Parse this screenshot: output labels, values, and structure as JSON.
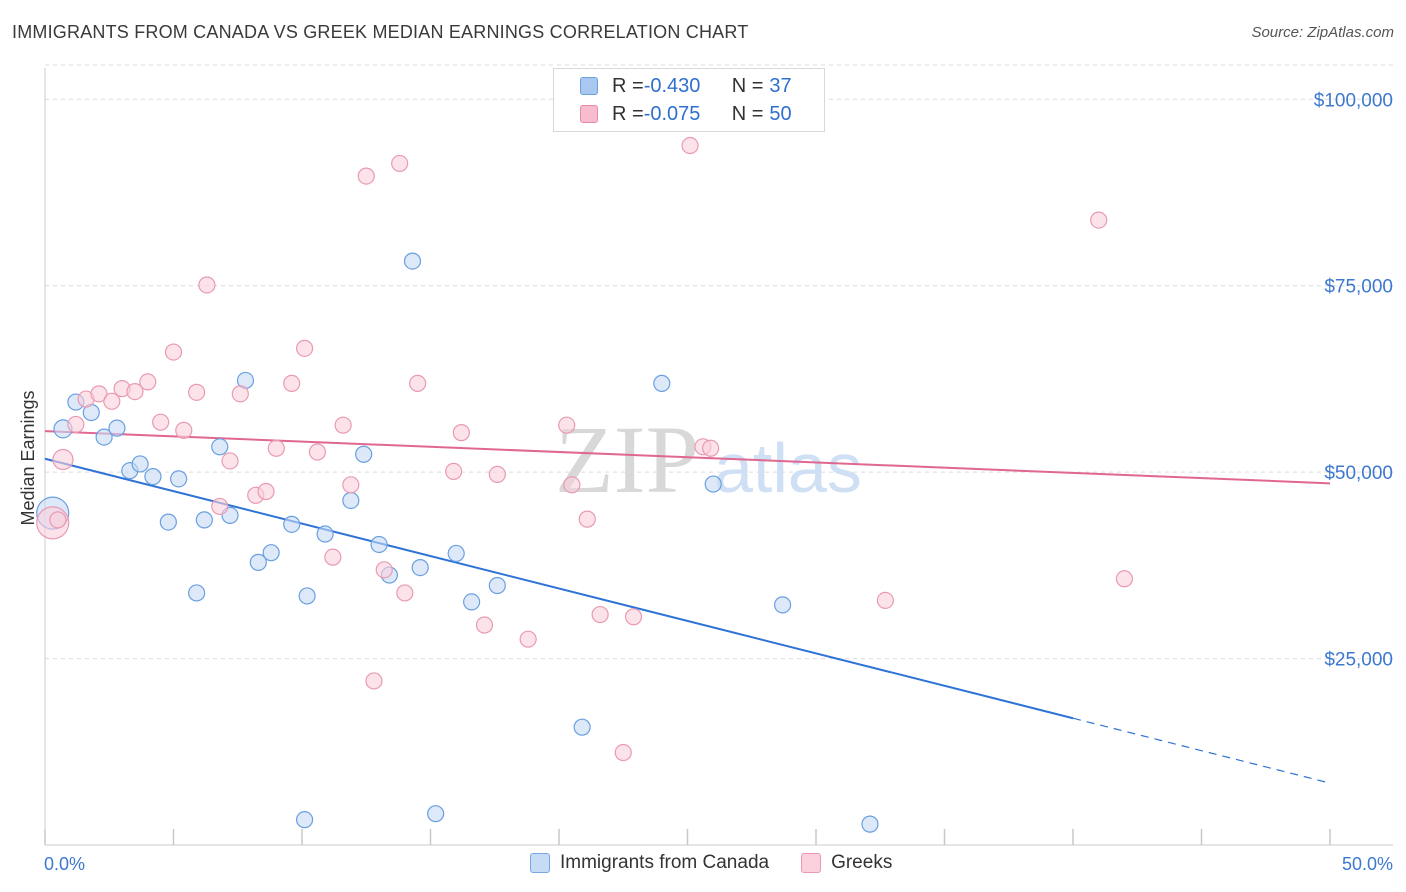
{
  "title": "IMMIGRANTS FROM CANADA VS GREEK MEDIAN EARNINGS CORRELATION CHART",
  "source": "Source: ZipAtlas.com",
  "watermark": {
    "zip": "ZIP",
    "atlas": "atlas"
  },
  "legend": [
    {
      "r_label": "R = ",
      "r_value": "-0.430",
      "n_label": "N = ",
      "n_value": "37",
      "color": "#a9c8f0",
      "border": "#6a9fe0"
    },
    {
      "r_label": "R = ",
      "r_value": "-0.075",
      "n_label": "N = ",
      "n_value": "50",
      "color": "#f7bccd",
      "border": "#e88aa6"
    }
  ],
  "bottom_legend": [
    {
      "label": "Immigrants from Canada",
      "color": "#c6dbf5",
      "border": "#7aa8e4"
    },
    {
      "label": "Greeks",
      "color": "#fad0dc",
      "border": "#e99ab2"
    }
  ],
  "chart_data": {
    "type": "scatter",
    "ylabel": "Median Earnings",
    "xlabel": "",
    "xlim": [
      0,
      50
    ],
    "ylim": [
      0,
      105000
    ],
    "x_tick_labels": [
      "0.0%",
      "50.0%"
    ],
    "y_ticks": [
      25000,
      50000,
      75000,
      100000
    ],
    "y_tick_labels": [
      "$25,000",
      "$50,000",
      "$75,000",
      "$100,000"
    ],
    "series": [
      {
        "name": "Immigrants from Canada",
        "color": "#6a9fe0",
        "fill": "#c6dbf5",
        "trend": {
          "x0": 0,
          "y0": 51800,
          "x1": 40,
          "y1": 17000,
          "dash_to_x": 50,
          "dash_to_y": 8300,
          "color": "#2f73d6"
        },
        "points": [
          [
            0.3,
            44500,
            16
          ],
          [
            0.7,
            55800,
            9
          ],
          [
            1.2,
            59400,
            8
          ],
          [
            1.8,
            58000,
            8
          ],
          [
            2.3,
            54700,
            8
          ],
          [
            2.8,
            55900,
            8
          ],
          [
            3.3,
            50200,
            8
          ],
          [
            3.7,
            51100,
            8
          ],
          [
            4.2,
            49400,
            8
          ],
          [
            4.8,
            43300,
            8
          ],
          [
            5.2,
            49100,
            8
          ],
          [
            5.9,
            33800,
            8
          ],
          [
            6.2,
            43600,
            8
          ],
          [
            6.8,
            53400,
            8
          ],
          [
            7.2,
            44200,
            8
          ],
          [
            7.8,
            62300,
            8
          ],
          [
            8.3,
            37900,
            8
          ],
          [
            8.8,
            39200,
            8
          ],
          [
            9.6,
            43000,
            8
          ],
          [
            10.1,
            3400,
            8
          ],
          [
            10.2,
            33400,
            8
          ],
          [
            10.9,
            41700,
            8
          ],
          [
            11.9,
            46200,
            8
          ],
          [
            12.4,
            52400,
            8
          ],
          [
            13.0,
            40300,
            8
          ],
          [
            13.4,
            36200,
            8
          ],
          [
            14.3,
            78300,
            8
          ],
          [
            14.6,
            37200,
            8
          ],
          [
            15.2,
            4200,
            8
          ],
          [
            16.0,
            39100,
            8
          ],
          [
            16.6,
            32600,
            8
          ],
          [
            17.6,
            34800,
            8
          ],
          [
            20.9,
            15800,
            8
          ],
          [
            24.0,
            61900,
            8
          ],
          [
            26.0,
            48400,
            8
          ],
          [
            28.7,
            32200,
            8
          ],
          [
            32.1,
            2800,
            8
          ]
        ]
      },
      {
        "name": "Greeks",
        "color": "#e99ab2",
        "fill": "#fad0dc",
        "trend": {
          "x0": 0,
          "y0": 55500,
          "x1": 50,
          "y1": 48500,
          "color": "#e0678f"
        },
        "points": [
          [
            0.3,
            43200,
            16
          ],
          [
            0.7,
            51700,
            10
          ],
          [
            1.2,
            56400,
            8
          ],
          [
            1.6,
            59800,
            8
          ],
          [
            2.1,
            60500,
            8
          ],
          [
            2.6,
            59500,
            8
          ],
          [
            3.0,
            61200,
            8
          ],
          [
            3.5,
            60800,
            8
          ],
          [
            4.0,
            62100,
            8
          ],
          [
            4.5,
            56700,
            8
          ],
          [
            5.0,
            66100,
            8
          ],
          [
            5.4,
            55600,
            8
          ],
          [
            5.9,
            60700,
            8
          ],
          [
            6.3,
            75100,
            8
          ],
          [
            6.8,
            45400,
            8
          ],
          [
            7.2,
            51500,
            8
          ],
          [
            7.6,
            60500,
            8
          ],
          [
            8.2,
            46900,
            8
          ],
          [
            8.6,
            47400,
            8
          ],
          [
            9.0,
            53200,
            8
          ],
          [
            9.6,
            61900,
            8
          ],
          [
            10.1,
            66600,
            8
          ],
          [
            10.6,
            52700,
            8
          ],
          [
            11.2,
            38600,
            8
          ],
          [
            11.6,
            56300,
            8
          ],
          [
            11.9,
            48300,
            8
          ],
          [
            12.5,
            89700,
            8
          ],
          [
            12.8,
            22000,
            8
          ],
          [
            13.2,
            36900,
            8
          ],
          [
            13.8,
            91400,
            8
          ],
          [
            14.0,
            33800,
            8
          ],
          [
            14.5,
            61900,
            8
          ],
          [
            15.9,
            50100,
            8
          ],
          [
            16.2,
            55300,
            8
          ],
          [
            17.1,
            29500,
            8
          ],
          [
            17.6,
            49700,
            8
          ],
          [
            18.8,
            27600,
            8
          ],
          [
            20.3,
            56300,
            8
          ],
          [
            20.5,
            48300,
            8
          ],
          [
            21.1,
            43700,
            8
          ],
          [
            21.6,
            30900,
            8
          ],
          [
            22.5,
            12400,
            8
          ],
          [
            22.9,
            30600,
            8
          ],
          [
            25.1,
            93800,
            8
          ],
          [
            25.6,
            53400,
            8
          ],
          [
            25.9,
            53200,
            8
          ],
          [
            32.7,
            32800,
            8
          ],
          [
            41.0,
            83800,
            8
          ],
          [
            42.0,
            35700,
            8
          ],
          [
            0.5,
            43600,
            8
          ]
        ]
      }
    ]
  }
}
